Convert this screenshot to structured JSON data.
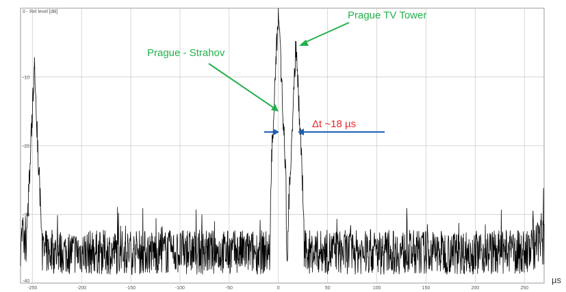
{
  "chart_data": {
    "type": "line",
    "ylabel": "0 - Rel level [dB]",
    "xunit": "µs",
    "xlim": [
      -262,
      270
    ],
    "ylim": [
      -40,
      0
    ],
    "xticks": [
      -250,
      -200,
      -150,
      -100,
      -50,
      0,
      50,
      100,
      150,
      200,
      250
    ],
    "yticks": [
      -10,
      -20,
      -30,
      -40
    ],
    "grid": true,
    "noise_floor_db": -35.5,
    "peaks": [
      {
        "x": -248,
        "y": -8.8
      },
      {
        "x": 0,
        "y": 0
      },
      {
        "x": 18,
        "y": -4.8
      }
    ],
    "colors": {
      "trace": "#000000",
      "annotation": "#22b04a",
      "measure_text": "#e8262a",
      "measure_arrow": "#1f5fb4",
      "grid": "#c8c8c8"
    },
    "annotations": [
      {
        "text": "Prague TV Tower",
        "points_to_x": 18
      },
      {
        "text": "Prague - Strahov",
        "points_to_x": 0
      }
    ],
    "measurement": {
      "label": "Δt  ~18 µs",
      "from_x": 0,
      "to_x": 18,
      "y": -18
    }
  }
}
